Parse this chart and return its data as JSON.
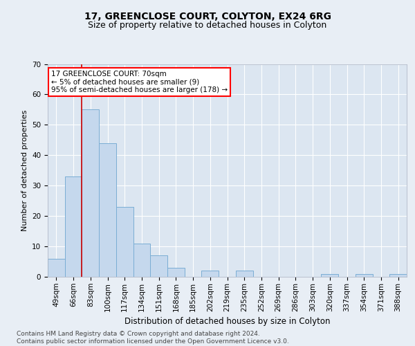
{
  "title": "17, GREENCLOSE COURT, COLYTON, EX24 6RG",
  "subtitle": "Size of property relative to detached houses in Colyton",
  "xlabel": "Distribution of detached houses by size in Colyton",
  "ylabel": "Number of detached properties",
  "categories": [
    "49sqm",
    "66sqm",
    "83sqm",
    "100sqm",
    "117sqm",
    "134sqm",
    "151sqm",
    "168sqm",
    "185sqm",
    "202sqm",
    "219sqm",
    "235sqm",
    "252sqm",
    "269sqm",
    "286sqm",
    "303sqm",
    "320sqm",
    "337sqm",
    "354sqm",
    "371sqm",
    "388sqm"
  ],
  "values": [
    6,
    33,
    55,
    44,
    23,
    11,
    7,
    3,
    0,
    2,
    0,
    2,
    0,
    0,
    0,
    0,
    1,
    0,
    1,
    0,
    1
  ],
  "bar_color": "#c5d8ed",
  "bar_edge_color": "#7aadd4",
  "background_color": "#e8eef5",
  "plot_bg_color": "#dce6f1",
  "red_line_color": "#cc0000",
  "red_line_x": 1.5,
  "annotation_text": "17 GREENCLOSE COURT: 70sqm\n← 5% of detached houses are smaller (9)\n95% of semi-detached houses are larger (178) →",
  "annotation_box_facecolor": "white",
  "annotation_box_edgecolor": "red",
  "ylim": [
    0,
    70
  ],
  "yticks": [
    0,
    10,
    20,
    30,
    40,
    50,
    60,
    70
  ],
  "footer": "Contains HM Land Registry data © Crown copyright and database right 2024.\nContains public sector information licensed under the Open Government Licence v3.0.",
  "title_fontsize": 10,
  "subtitle_fontsize": 9,
  "xlabel_fontsize": 8.5,
  "ylabel_fontsize": 8,
  "tick_fontsize": 7.5,
  "annotation_fontsize": 7.5,
  "footer_fontsize": 6.5
}
